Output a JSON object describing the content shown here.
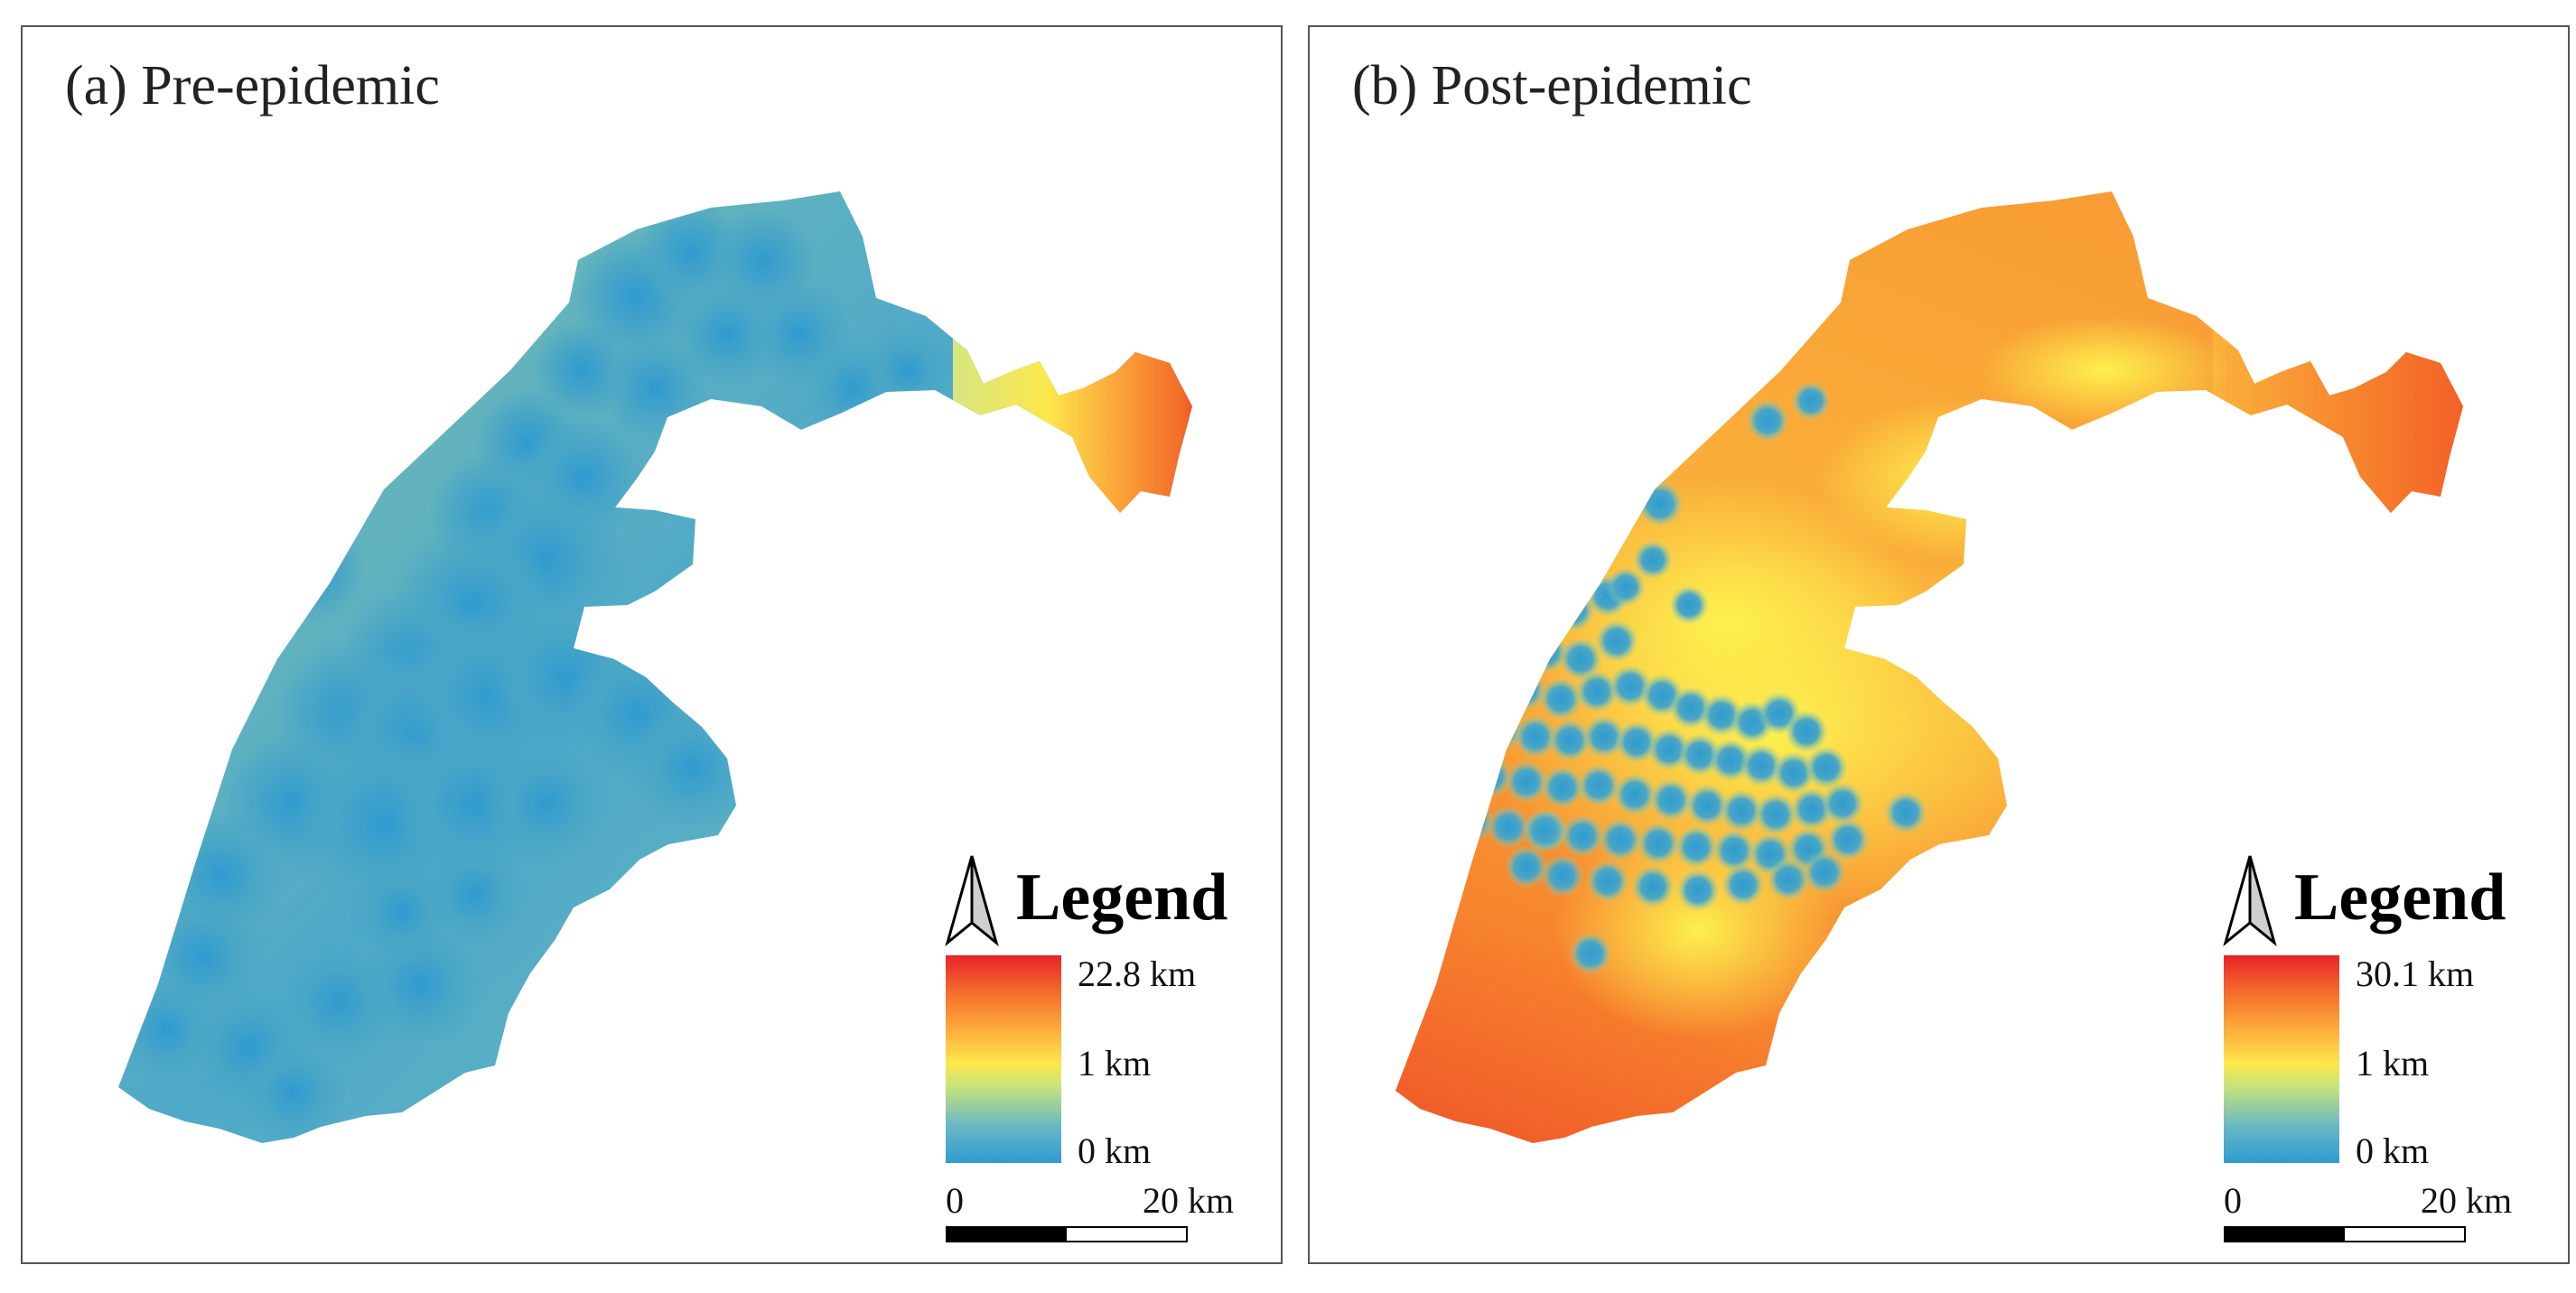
{
  "panels": [
    {
      "id": "a",
      "title": "(a) Pre-epidemic",
      "legend": {
        "title": "Legend",
        "max_label": "22.8 km",
        "mid_label": "1 km",
        "min_label": "0 km",
        "ramp_colors": [
          "#e8232a",
          "#fca63a",
          "#fde74c",
          "#2f9bd0"
        ]
      },
      "scale_bar": {
        "start_label": "0",
        "end_label": "20 km"
      },
      "surface_base_color": "#2f9bd0",
      "hotspot_color": "#e8232a"
    },
    {
      "id": "b",
      "title": "(b) Post-epidemic",
      "legend": {
        "title": "Legend",
        "max_label": "30.1 km",
        "mid_label": "1 km",
        "min_label": "0 km",
        "ramp_colors": [
          "#e8232a",
          "#fca63a",
          "#fde74c",
          "#2f9bd0"
        ]
      },
      "scale_bar": {
        "start_label": "0",
        "end_label": "20 km"
      },
      "surface_base_color": "#f7902f",
      "facility_color": "#2f9bd0"
    }
  ]
}
